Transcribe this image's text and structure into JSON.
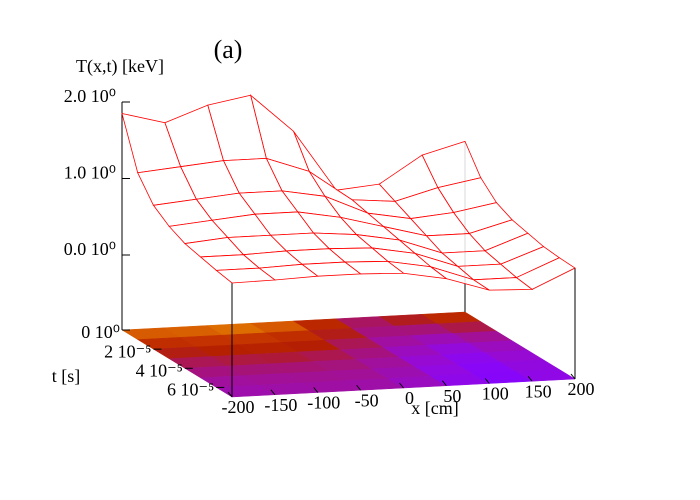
{
  "chart_data": {
    "type": "surface",
    "title": "(a)",
    "xlabel": "x [cm]",
    "ylabel": "t [s]",
    "zlabel": "T(x,t) [keV]",
    "x": [
      -200,
      -150,
      -100,
      -50,
      0,
      50,
      100,
      150,
      200
    ],
    "y": [
      0,
      1e-05,
      2e-05,
      3e-05,
      4e-05,
      5e-05,
      6e-05,
      7e-05
    ],
    "values": [
      [
        1.85,
        1.7,
        1.9,
        2.0,
        1.5,
        0.7,
        0.75,
        1.1,
        1.25
      ],
      [
        1.2,
        1.25,
        1.3,
        1.3,
        1.1,
        0.7,
        0.65,
        0.8,
        0.9
      ],
      [
        0.9,
        0.95,
        1.0,
        1.0,
        0.9,
        0.65,
        0.55,
        0.6,
        0.7
      ],
      [
        0.75,
        0.8,
        0.85,
        0.85,
        0.75,
        0.6,
        0.45,
        0.45,
        0.6
      ],
      [
        0.65,
        0.7,
        0.7,
        0.7,
        0.65,
        0.55,
        0.35,
        0.35,
        0.55
      ],
      [
        0.6,
        0.6,
        0.62,
        0.62,
        0.6,
        0.5,
        0.3,
        0.3,
        0.5
      ],
      [
        0.55,
        0.55,
        0.57,
        0.57,
        0.55,
        0.45,
        0.25,
        0.25,
        0.48
      ],
      [
        0.51,
        0.52,
        0.54,
        0.54,
        0.52,
        0.42,
        0.24,
        0.22,
        0.47
      ]
    ],
    "color": "#ff0000",
    "xlim": [
      -200,
      200
    ],
    "ylim": [
      0,
      7e-05
    ],
    "zlim": [
      0,
      2
    ],
    "xticks": [
      -200,
      -150,
      -100,
      -50,
      0,
      50,
      100,
      150,
      200
    ],
    "yticks": [
      {
        "value": 0,
        "label": "0 10⁰"
      },
      {
        "value": 2e-05,
        "label": "2 10⁻⁵"
      },
      {
        "value": 4e-05,
        "label": "4 10⁻⁵"
      },
      {
        "value": 6e-05,
        "label": "6 10⁻⁵"
      }
    ],
    "zticks": [
      {
        "value": 0,
        "label": "0.0 10⁰"
      },
      {
        "value": 1,
        "label": "1.0 10⁰"
      },
      {
        "value": 2,
        "label": "2.0 10⁰"
      }
    ]
  }
}
